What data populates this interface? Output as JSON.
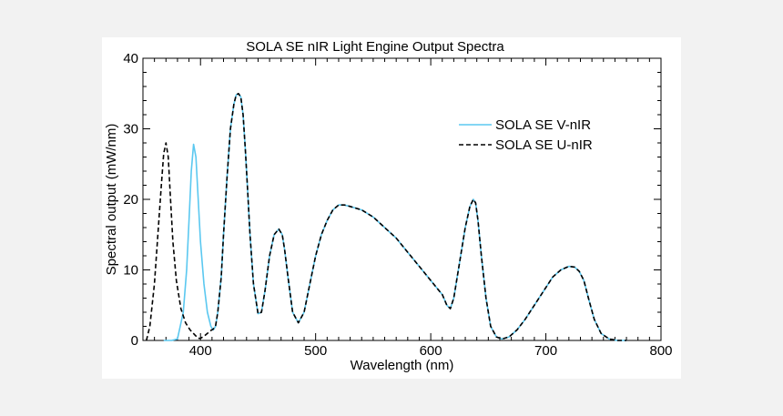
{
  "chart_data": {
    "type": "line",
    "title": "SOLA SE nIR Light Engine Output Spectra",
    "xlabel": "Wavelength (nm)",
    "ylabel": "Spectral output (mW/nm)",
    "xlim": [
      350,
      800
    ],
    "ylim": [
      0,
      40
    ],
    "xticks": [
      400,
      500,
      600,
      700,
      800
    ],
    "yticks": [
      0,
      10,
      20,
      30,
      40
    ],
    "legend_position": "upper-right",
    "grid": false,
    "colors": {
      "v_series": "#5bc8f0",
      "u_series": "#000000"
    },
    "series": [
      {
        "name": "SOLA SE V-nIR",
        "style": "solid",
        "x": [
          368,
          375,
          380,
          385,
          388,
          390,
          392,
          394,
          396,
          398,
          400,
          403,
          406,
          409,
          411,
          413,
          415,
          418,
          420,
          423,
          426,
          429,
          431,
          433,
          435,
          437,
          439,
          441,
          443,
          446,
          450,
          453,
          456,
          460,
          464,
          468,
          471,
          473,
          476,
          480,
          485,
          490,
          495,
          500,
          505,
          510,
          515,
          520,
          525,
          530,
          540,
          550,
          560,
          570,
          580,
          590,
          600,
          605,
          610,
          614,
          617,
          620,
          625,
          630,
          634,
          637,
          639,
          641,
          644,
          648,
          652,
          657,
          662,
          668,
          675,
          682,
          690,
          698,
          706,
          713,
          720,
          725,
          729,
          733,
          737,
          742,
          748,
          755,
          762,
          770
        ],
        "y": [
          0,
          0,
          0.2,
          4,
          10,
          17,
          24,
          27.8,
          26,
          20,
          14,
          8,
          4,
          2,
          1.5,
          2,
          4,
          9,
          15,
          23,
          30,
          33.5,
          34.8,
          35,
          34.5,
          32,
          27,
          21,
          15,
          8,
          3.8,
          4,
          7,
          12,
          15,
          15.8,
          15,
          13,
          9,
          4,
          2.5,
          4,
          8,
          12,
          15,
          17,
          18.5,
          19.2,
          19.2,
          19,
          18.5,
          17.5,
          16,
          14.5,
          12.5,
          10.5,
          8.5,
          7.5,
          6.5,
          5,
          4.5,
          6,
          11,
          16,
          19,
          20,
          19.5,
          17,
          12,
          6,
          2,
          0.5,
          0.2,
          0.5,
          1.5,
          3,
          5,
          7,
          9,
          10,
          10.5,
          10.4,
          9.8,
          8.5,
          6,
          3,
          1,
          0.2,
          0,
          0
        ]
      },
      {
        "name": "SOLA SE U-nIR",
        "style": "dashed",
        "x": [
          353,
          356,
          360,
          363,
          366,
          368,
          370,
          372,
          374,
          376,
          379,
          383,
          387,
          391,
          395,
          398,
          400,
          403,
          406,
          409,
          411,
          413,
          415,
          418,
          420,
          423,
          426,
          429,
          431,
          433,
          435,
          437,
          439,
          441,
          443,
          446,
          450,
          453,
          456,
          460,
          464,
          468,
          471,
          473,
          476,
          480,
          485,
          490,
          495,
          500,
          505,
          510,
          515,
          520,
          525,
          530,
          540,
          550,
          560,
          570,
          580,
          590,
          600,
          605,
          610,
          614,
          617,
          620,
          625,
          630,
          634,
          637,
          639,
          641,
          644,
          648,
          652,
          657,
          662,
          668,
          675,
          682,
          690,
          698,
          706,
          713,
          720,
          725,
          729,
          733,
          737,
          742,
          748,
          755,
          762,
          770
        ],
        "y": [
          0,
          2,
          8,
          15,
          22,
          26.5,
          28,
          26,
          20,
          14,
          8.5,
          4.5,
          2.5,
          1.5,
          0.8,
          0.3,
          0.3,
          0.6,
          1,
          1.4,
          1.6,
          2,
          4,
          9,
          15,
          23,
          30,
          33.5,
          34.8,
          35,
          34.5,
          32,
          27,
          21,
          15,
          8,
          3.8,
          4,
          7,
          12,
          15,
          15.8,
          15,
          13,
          9,
          4,
          2.5,
          4,
          8,
          12,
          15,
          17,
          18.5,
          19.2,
          19.2,
          19,
          18.5,
          17.5,
          16,
          14.5,
          12.5,
          10.5,
          8.5,
          7.5,
          6.5,
          5,
          4.5,
          6,
          11,
          16,
          19,
          20,
          19.5,
          17,
          12,
          6,
          2,
          0.5,
          0.2,
          0.5,
          1.5,
          3,
          5,
          7,
          9,
          10,
          10.5,
          10.4,
          9.8,
          8.5,
          6,
          3,
          1,
          0.2,
          0,
          0
        ]
      }
    ]
  }
}
